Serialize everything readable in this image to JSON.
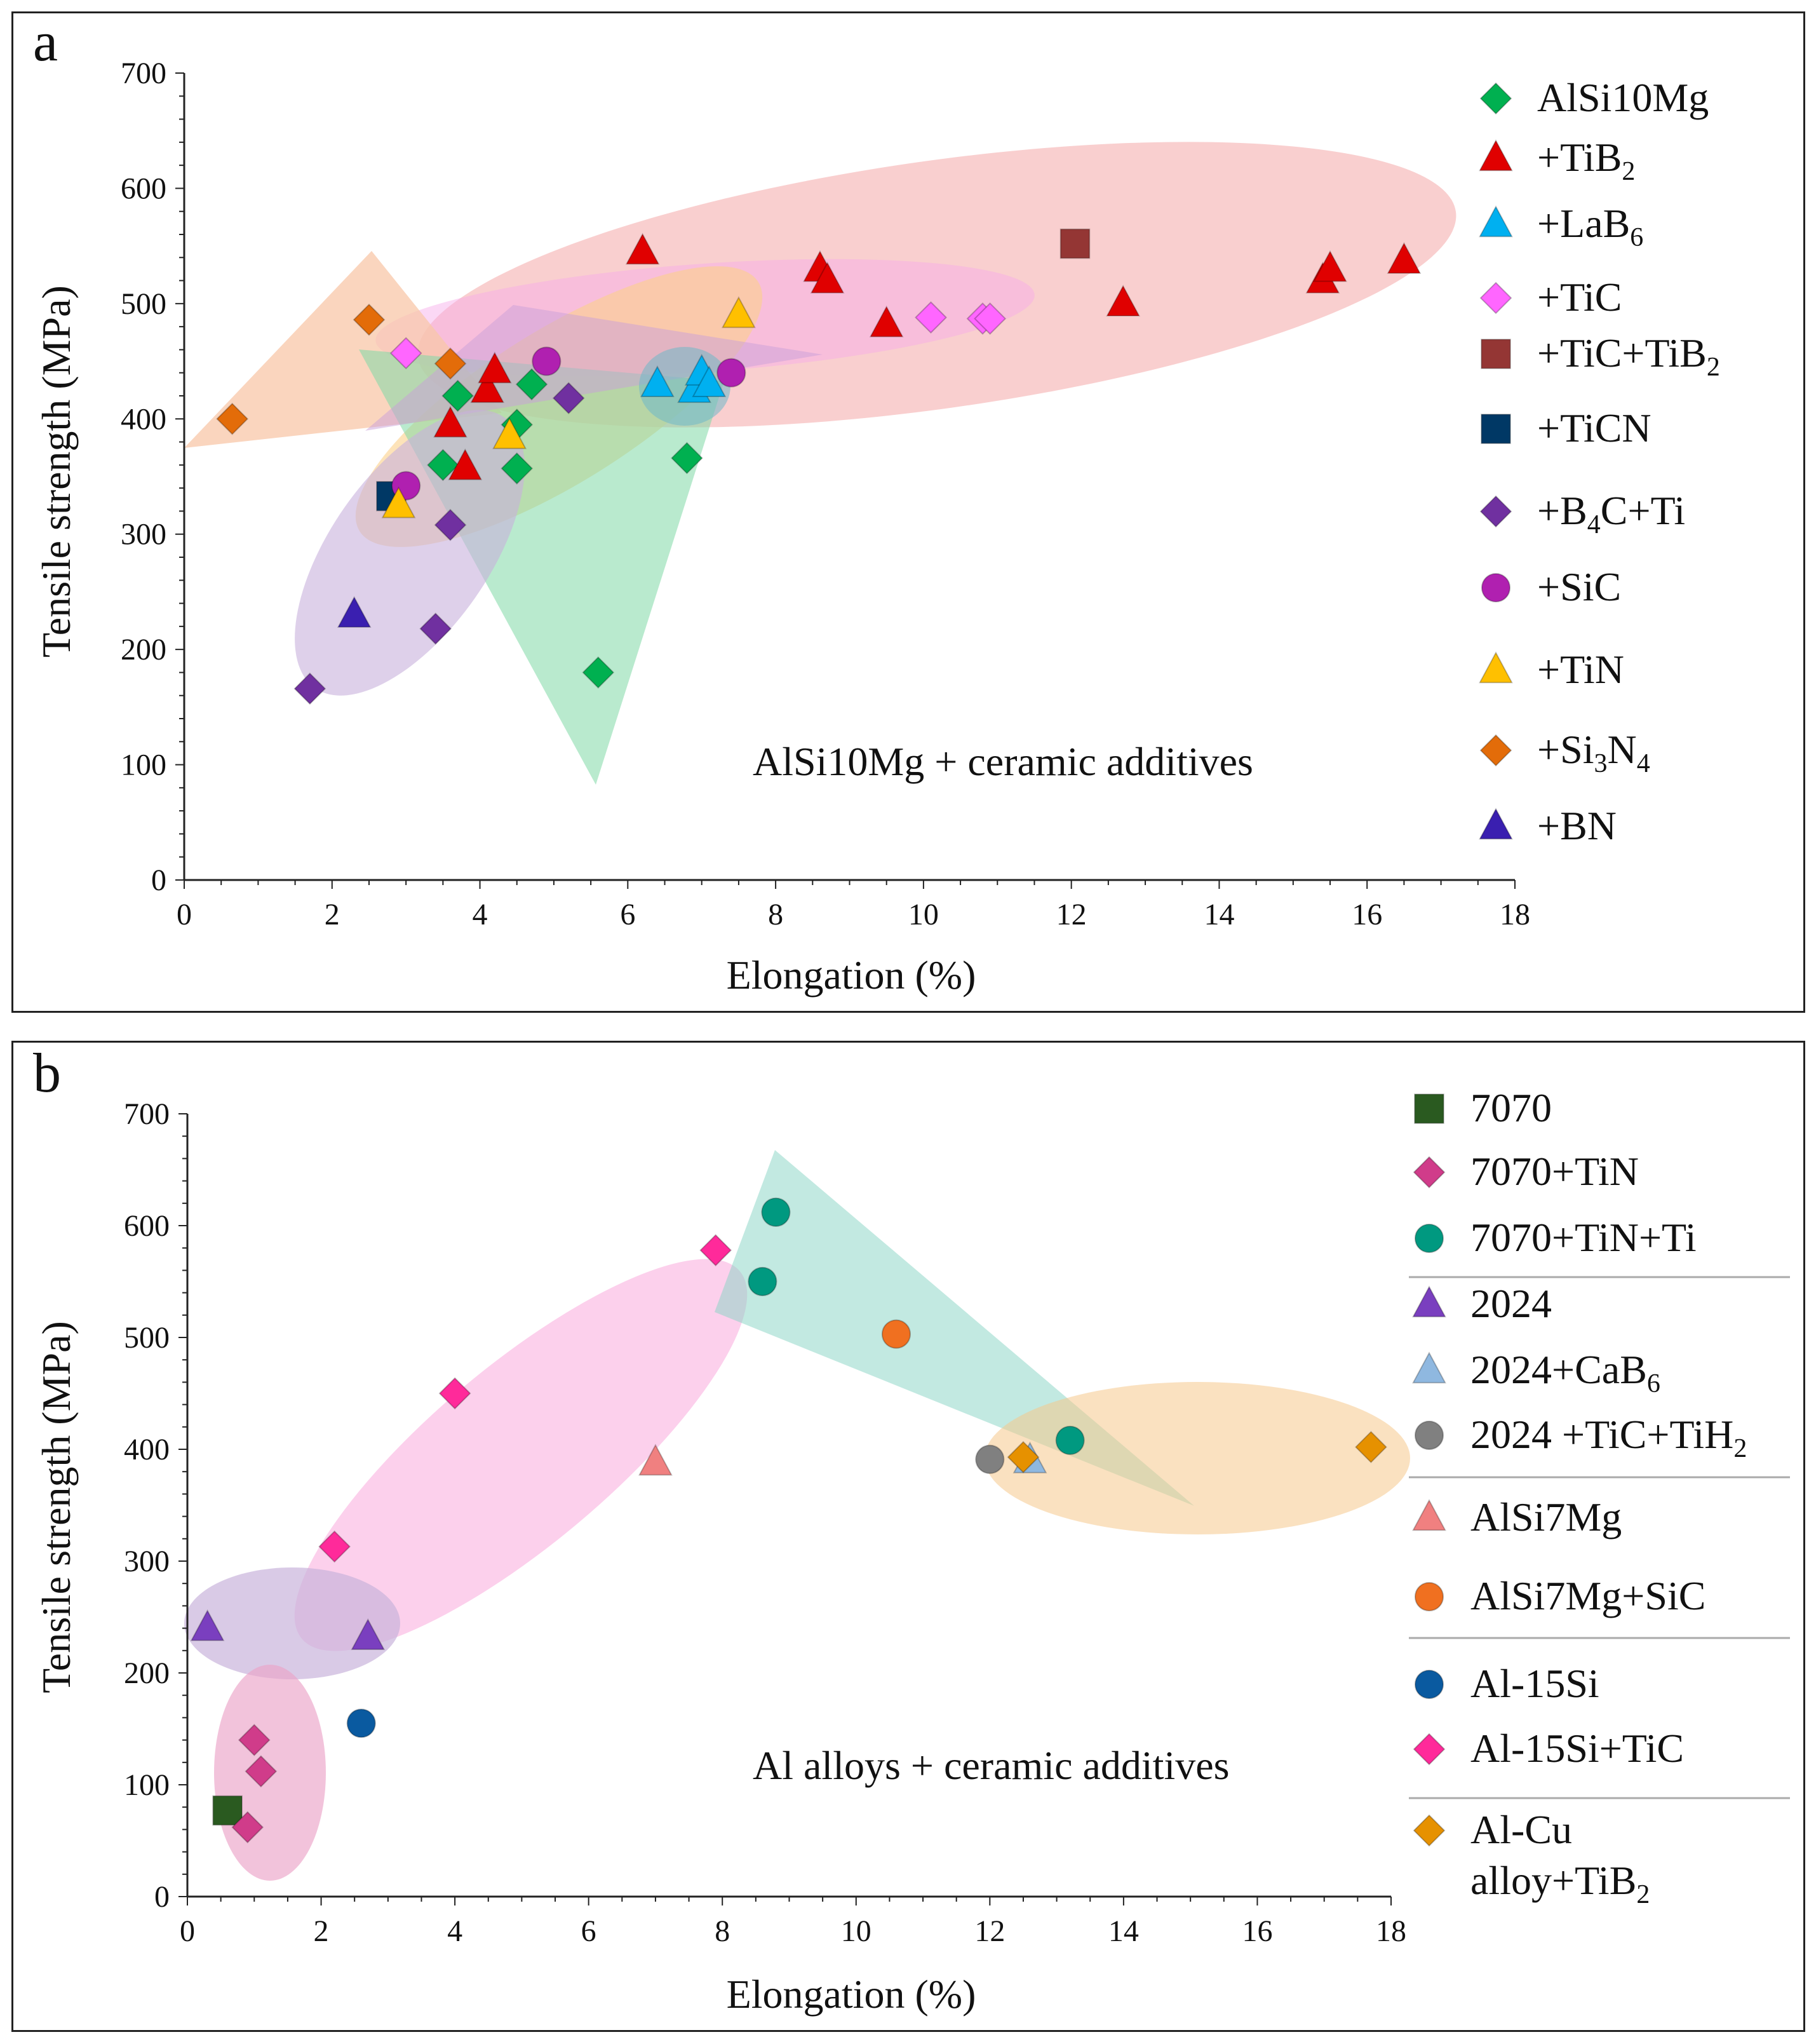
{
  "chart_data": [
    {
      "panel": "a",
      "type": "scatter",
      "xlabel": "Elongation (%)",
      "ylabel": "Tensile strength (MPa)",
      "xlim": [
        0,
        18
      ],
      "ylim": [
        0,
        700
      ],
      "xticks": [
        0,
        2,
        4,
        6,
        8,
        10,
        12,
        14,
        16,
        18
      ],
      "yticks": [
        0,
        100,
        200,
        300,
        400,
        500,
        600,
        700
      ],
      "annotation": "AlSi10Mg + ceramic additives",
      "legend_position": "right",
      "series": [
        {
          "name": "AlSi10Mg",
          "parts": [
            [
              "AlSi10Mg",
              ""
            ]
          ],
          "marker": "diamond",
          "color": "#00b050",
          "points": [
            [
              3.5,
              360
            ],
            [
              3.7,
              420
            ],
            [
              4.5,
              395
            ],
            [
              4.5,
              357
            ],
            [
              4.7,
              430
            ],
            [
              5.6,
              180
            ],
            [
              6.8,
              366
            ]
          ]
        },
        {
          "name": "+TiB2",
          "parts": [
            [
              "+TiB",
              ""
            ],
            [
              "2",
              "sub"
            ]
          ],
          "marker": "triangle",
          "color": "#e00000",
          "points": [
            [
              3.6,
              395
            ],
            [
              3.8,
              358
            ],
            [
              4.1,
              425
            ],
            [
              4.2,
              442
            ],
            [
              6.2,
              545
            ],
            [
              8.6,
              530
            ],
            [
              8.7,
              520
            ],
            [
              9.5,
              482
            ],
            [
              12.7,
              500
            ],
            [
              15.4,
              520
            ],
            [
              15.5,
              530
            ],
            [
              16.5,
              537
            ]
          ]
        },
        {
          "name": "+LaB6",
          "parts": [
            [
              "+LaB",
              ""
            ],
            [
              "6",
              "sub"
            ]
          ],
          "marker": "triangle",
          "color": "#00b0f0",
          "points": [
            [
              6.4,
              430
            ],
            [
              6.9,
              425
            ],
            [
              7.0,
              440
            ],
            [
              7.1,
              430
            ]
          ]
        },
        {
          "name": "+TiC",
          "parts": [
            [
              "+TiC",
              ""
            ]
          ],
          "marker": "diamond",
          "color": "#ff66ff",
          "points": [
            [
              3.0,
              457
            ],
            [
              10.1,
              488
            ],
            [
              10.8,
              487
            ],
            [
              10.9,
              487
            ]
          ]
        },
        {
          "name": "+TiC+TiB2",
          "parts": [
            [
              "+TiC+TiB",
              ""
            ],
            [
              "2",
              "sub"
            ]
          ],
          "marker": "square",
          "color": "#943634",
          "points": [
            [
              12.05,
              552
            ]
          ]
        },
        {
          "name": "+TiCN",
          "parts": [
            [
              "+TiCN",
              ""
            ]
          ],
          "marker": "square",
          "color": "#003865",
          "points": [
            [
              2.8,
              333
            ]
          ]
        },
        {
          "name": "+B4C+Ti",
          "parts": [
            [
              "+B",
              ""
            ],
            [
              "4",
              "sub"
            ],
            [
              "C+Ti",
              ""
            ]
          ],
          "marker": "diamond",
          "color": "#7030a0",
          "points": [
            [
              1.7,
              166
            ],
            [
              3.4,
              218
            ],
            [
              3.6,
              308
            ],
            [
              5.2,
              418
            ]
          ]
        },
        {
          "name": "+SiC",
          "parts": [
            [
              "+SiC",
              ""
            ]
          ],
          "marker": "circle",
          "color": "#b020b0",
          "points": [
            [
              3.0,
              342
            ],
            [
              4.9,
              450
            ],
            [
              7.4,
              440
            ]
          ]
        },
        {
          "name": "+TiN",
          "parts": [
            [
              "+TiN",
              ""
            ]
          ],
          "marker": "triangle",
          "color": "#ffc000",
          "points": [
            [
              2.9,
              325
            ],
            [
              4.4,
              385
            ],
            [
              7.5,
              490
            ]
          ]
        },
        {
          "name": "+Si3N4",
          "parts": [
            [
              "+Si",
              ""
            ],
            [
              "3",
              "sub"
            ],
            [
              "N",
              ""
            ],
            [
              "4",
              "sub"
            ]
          ],
          "marker": "diamond",
          "color": "#e36c09",
          "points": [
            [
              0.65,
              400
            ],
            [
              2.5,
              486
            ],
            [
              3.6,
              448
            ]
          ]
        },
        {
          "name": "+BN",
          "parts": [
            [
              "+BN",
              ""
            ]
          ],
          "marker": "triangle",
          "color": "#3a1fb0",
          "points": [
            [
              2.3,
              230
            ]
          ]
        }
      ]
    },
    {
      "panel": "b",
      "type": "scatter",
      "xlabel": "Elongation (%)",
      "ylabel": "Tensile strength (MPa)",
      "xlim": [
        0,
        18
      ],
      "ylim": [
        0,
        700
      ],
      "xticks": [
        0,
        2,
        4,
        6,
        8,
        10,
        12,
        14,
        16,
        18
      ],
      "yticks": [
        0,
        100,
        200,
        300,
        400,
        500,
        600,
        700
      ],
      "annotation": "Al alloys + ceramic additives",
      "legend_position": "right",
      "series": [
        {
          "name": "7070",
          "parts": [
            [
              "7070",
              ""
            ]
          ],
          "marker": "square",
          "color": "#2a5a20",
          "points": [
            [
              0.6,
              77
            ]
          ]
        },
        {
          "name": "7070+TiN",
          "parts": [
            [
              "7070+TiN",
              ""
            ]
          ],
          "marker": "diamond",
          "color": "#d03c8a",
          "points": [
            [
              0.9,
              62
            ],
            [
              1.0,
              140
            ],
            [
              1.1,
              112
            ]
          ]
        },
        {
          "name": "7070+TiN+Ti",
          "parts": [
            [
              "7070+TiN+Ti",
              ""
            ]
          ],
          "marker": "circle",
          "color": "#009980",
          "points": [
            [
              8.6,
              550
            ],
            [
              8.8,
              612
            ],
            [
              13.2,
              408
            ]
          ]
        },
        {
          "name": "2024",
          "parts": [
            [
              "2024",
              ""
            ]
          ],
          "marker": "triangle",
          "color": "#7a3fbf",
          "points": [
            [
              0.3,
              240
            ],
            [
              2.7,
              232
            ]
          ]
        },
        {
          "name": "2024+CaB6",
          "parts": [
            [
              "2024+CaB",
              ""
            ],
            [
              "6",
              "sub"
            ]
          ],
          "marker": "triangle",
          "color": "#8fb8e0",
          "points": [
            [
              12.6,
              390
            ]
          ]
        },
        {
          "name": "2024 +TiC+TiH2",
          "parts": [
            [
              "2024 +TiC+TiH",
              ""
            ],
            [
              "2",
              "sub"
            ]
          ],
          "marker": "circle",
          "color": "#808080",
          "points": [
            [
              12.0,
              391
            ]
          ]
        },
        {
          "name": "AlSi7Mg",
          "parts": [
            [
              "AlSi7Mg",
              ""
            ]
          ],
          "marker": "triangle",
          "color": "#f08080",
          "points": [
            [
              7.0,
              388
            ]
          ]
        },
        {
          "name": "AlSi7Mg+SiC",
          "parts": [
            [
              "AlSi7Mg+SiC",
              ""
            ]
          ],
          "marker": "circle",
          "color": "#f07020",
          "points": [
            [
              10.6,
              503
            ]
          ]
        },
        {
          "name": "Al-15Si",
          "parts": [
            [
              "Al-15Si",
              ""
            ]
          ],
          "marker": "circle",
          "color": "#0a5aa0",
          "points": [
            [
              2.6,
              155
            ]
          ]
        },
        {
          "name": "Al-15Si+TiC",
          "parts": [
            [
              "Al-15Si+TiC",
              ""
            ]
          ],
          "marker": "diamond",
          "color": "#ff2a9a",
          "points": [
            [
              2.2,
              313
            ],
            [
              4.0,
              450
            ],
            [
              7.9,
              578
            ]
          ]
        },
        {
          "name": "Al-Cu alloy+TiB2",
          "parts": [
            [
              "Al-Cu",
              ""
            ],
            [
              "alloy+TiB",
              "br"
            ],
            [
              "2",
              "sub"
            ]
          ],
          "marker": "diamond",
          "color": "#e69100",
          "points": [
            [
              12.5,
              393
            ],
            [
              17.7,
              402
            ]
          ]
        }
      ]
    }
  ],
  "panels": {
    "a": {
      "letter": "a",
      "annotation": "AlSi10Mg + ceramic additives",
      "xlabel": "Elongation (%)",
      "ylabel": "Tensile strength (MPa)"
    },
    "b": {
      "letter": "b",
      "annotation": "Al alloys + ceramic additives",
      "xlabel": "Elongation (%)",
      "ylabel": "Tensile strength (MPa)"
    }
  }
}
